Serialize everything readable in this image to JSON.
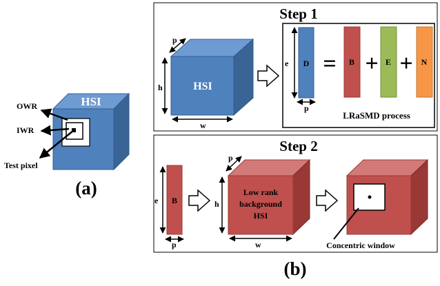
{
  "panel_a": {
    "cube_label": "HSI",
    "owr_label": "OWR",
    "iwr_label": "IWR",
    "test_pixel_label": "Test pixel",
    "caption": "(a)"
  },
  "panel_b": {
    "caption": "(b)",
    "step1": {
      "title": "Step 1",
      "cube_label": "HSI",
      "dim_p": "p",
      "dim_h": "h",
      "dim_w": "w",
      "matrix_d": "D",
      "dim_e": "e",
      "dim_p2": "p",
      "equals": "=",
      "plus": "+",
      "matrix_b": "B",
      "matrix_e": "E",
      "matrix_n": "N",
      "process_label": "LRaSMD process"
    },
    "step2": {
      "title": "Step 2",
      "matrix_b": "B",
      "dim_e": "e",
      "dim_p": "p",
      "dim_p2": "p",
      "dim_h": "h",
      "dim_w": "w",
      "cube_label_line1": "Low rank",
      "cube_label_line2": "background",
      "cube_label_line3": "HSI",
      "window_label": "Concentric window"
    }
  },
  "colors": {
    "blue_front": "#4f81bd",
    "blue_top": "#6f9bd3",
    "blue_side": "#3a6495",
    "red_front": "#c0504d",
    "red_top": "#d27a78",
    "red_side": "#9a3835",
    "green": "#9bbb59",
    "orange": "#f79646"
  }
}
